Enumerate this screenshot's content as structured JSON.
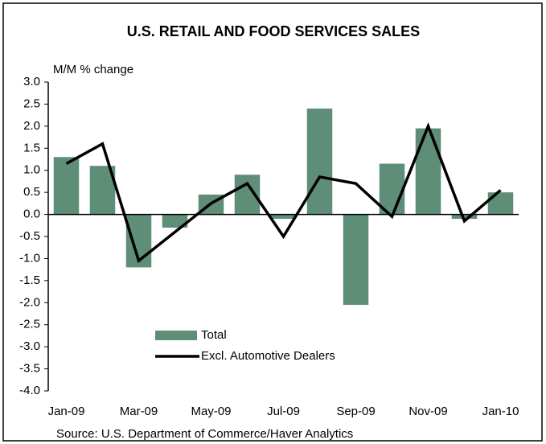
{
  "chart_data": {
    "type": "bar+line",
    "title": "U.S. RETAIL AND FOOD SERVICES SALES",
    "y_label": "M/M % change",
    "source": "Source: U.S. Department of Commerce/Haver Analytics",
    "categories": [
      "Jan-09",
      null,
      "Mar-09",
      null,
      "May-09",
      null,
      "Jul-09",
      null,
      "Sep-09",
      null,
      "Nov-09",
      null,
      "Jan-10"
    ],
    "series": [
      {
        "name": "Total",
        "type": "bar",
        "color": "#5f8e78",
        "values": [
          1.3,
          1.1,
          -1.2,
          -0.3,
          0.45,
          0.9,
          -0.1,
          2.4,
          -2.05,
          1.15,
          1.95,
          -0.1,
          0.5
        ]
      },
      {
        "name": "Excl. Automotive Dealers",
        "type": "line",
        "color": "#000000",
        "values": [
          1.15,
          1.6,
          -1.05,
          -0.4,
          0.25,
          0.7,
          -0.5,
          0.85,
          0.7,
          -0.05,
          2.0,
          -0.15,
          0.55
        ]
      }
    ],
    "ylim": [
      -4,
      3
    ],
    "yticks": [
      {
        "value": 3,
        "label": "3.0"
      },
      2.5,
      {
        "value": 2,
        "label": "2.0"
      },
      1.5,
      {
        "value": 1,
        "label": "1.0"
      },
      0.5,
      {
        "value": 0,
        "label": "0.0"
      },
      -0.5,
      {
        "value": -1,
        "label": "-1.0"
      },
      -1.5,
      {
        "value": -2,
        "label": "-2.0"
      },
      -2.5,
      {
        "value": -3,
        "label": "-3.0"
      },
      -3.5,
      {
        "value": -4,
        "label": "-4.0"
      }
    ],
    "grid": false
  }
}
